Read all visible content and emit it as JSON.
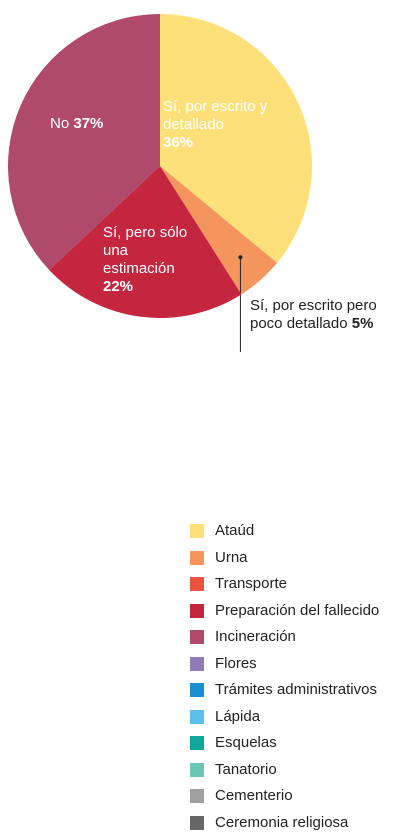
{
  "chart_data": {
    "type": "pie",
    "categories": [
      "Sí, por escrito y detallado",
      "Sí, por escrito pero poco detallado",
      "Sí, pero sólo una estimación",
      "No"
    ],
    "values": [
      36,
      5,
      22,
      37
    ],
    "value_labels": [
      "36%",
      "5%",
      "22%",
      "37%"
    ],
    "colors": [
      "#fde07a",
      "#f4955e",
      "#c4253f",
      "#b04a6b"
    ]
  },
  "legend": {
    "items": [
      {
        "label": "Ataúd",
        "color": "#fde07a"
      },
      {
        "label": "Urna",
        "color": "#f4955e"
      },
      {
        "label": "Transporte",
        "color": "#e8543f"
      },
      {
        "label": "Preparación del fallecido",
        "color": "#c4253f"
      },
      {
        "label": "Incineración",
        "color": "#b04a6b"
      },
      {
        "label": "Flores",
        "color": "#8e7bb8"
      },
      {
        "label": "Trámites administrativos",
        "color": "#1a8fd0"
      },
      {
        "label": "Lápida",
        "color": "#5bc0eb"
      },
      {
        "label": "Esquelas",
        "color": "#10a89a"
      },
      {
        "label": "Tanatorio",
        "color": "#6ec4b8"
      },
      {
        "label": "Cementerio",
        "color": "#a0a0a0"
      },
      {
        "label": "Ceremonia religiosa",
        "color": "#666666"
      }
    ]
  }
}
